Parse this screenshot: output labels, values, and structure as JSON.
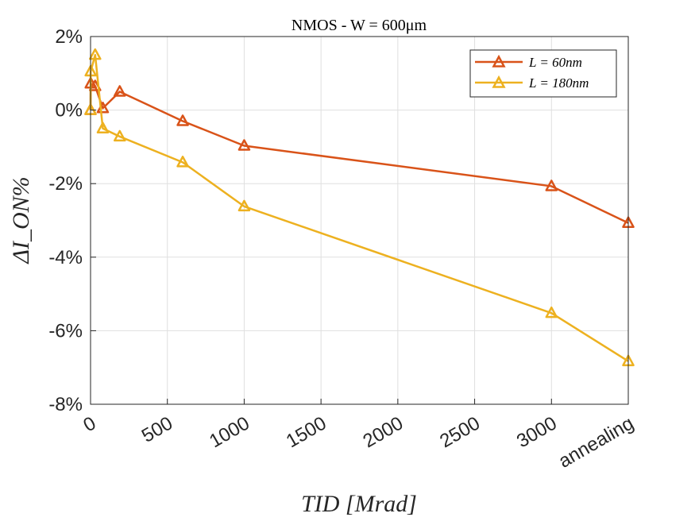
{
  "chart_data": {
    "type": "line",
    "title": "NMOS - W = 600μm",
    "xlabel": "TID [Mrad]",
    "ylabel": "ΔI_ON%",
    "xlim": [
      0,
      3500
    ],
    "ylim": [
      -8,
      2
    ],
    "xticks": [
      0,
      500,
      1000,
      1500,
      2000,
      2500,
      3000,
      3500
    ],
    "xtick_labels": [
      "0",
      "500",
      "1000",
      "1500",
      "2000",
      "2500",
      "3000",
      "annealing"
    ],
    "yticks": [
      -8,
      -6,
      -4,
      -2,
      0,
      2
    ],
    "ytick_labels": [
      "-8%",
      "-6%",
      "-4%",
      "-2%",
      "0%",
      "2%"
    ],
    "grid": true,
    "legend_position": "top-right",
    "series": [
      {
        "name": "L = 60nm",
        "color": "#D95319",
        "marker": "triangle",
        "x": [
          0,
          1,
          30,
          80,
          190,
          600,
          1000,
          3000,
          3500
        ],
        "y": [
          0.0,
          0.72,
          0.65,
          0.05,
          0.5,
          -0.3,
          -0.97,
          -2.07,
          -3.07
        ]
      },
      {
        "name": "L = 180nm",
        "color": "#EDB120",
        "marker": "triangle",
        "x": [
          0,
          1,
          30,
          80,
          190,
          600,
          1000,
          3000,
          3500
        ],
        "y": [
          0.0,
          1.05,
          1.5,
          -0.5,
          -0.72,
          -1.42,
          -2.62,
          -5.52,
          -6.83
        ]
      }
    ]
  }
}
